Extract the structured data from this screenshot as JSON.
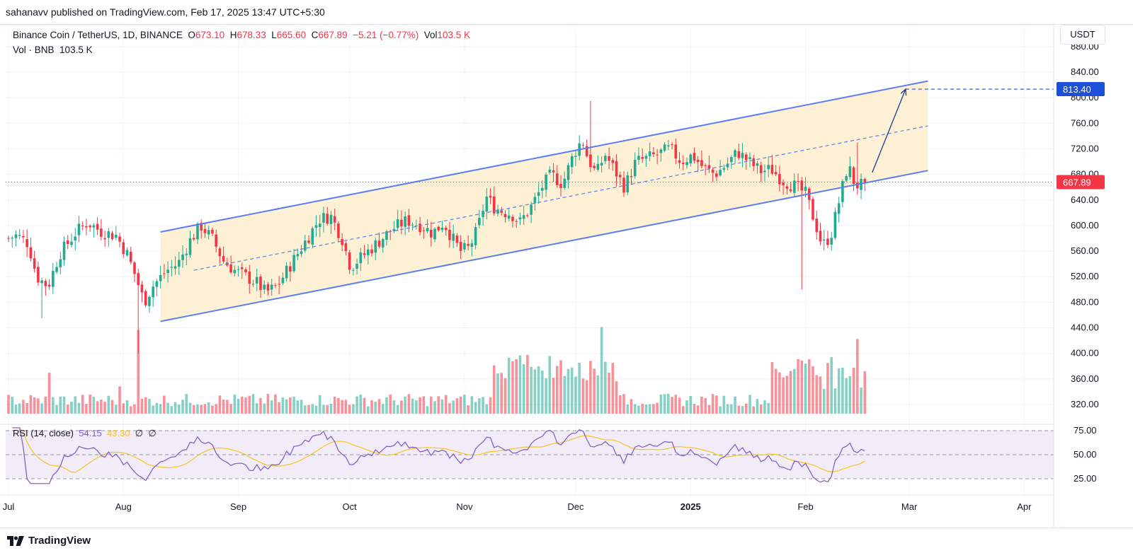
{
  "header": {
    "published": "sahanavv published on TradingView.com, Feb 17, 2025 13:47 UTC+5:30"
  },
  "legend": {
    "symbol": "Binance Coin / TetherUS, 1D, BINANCE",
    "o_label": "O",
    "o_val": "673.10",
    "h_label": "H",
    "h_val": "678.33",
    "l_label": "L",
    "l_val": "665.60",
    "c_label": "C",
    "c_val": "667.89",
    "change": "−5.21 (−0.77%)",
    "vol_label": "Vol",
    "vol_val": "103.5 K",
    "vol_line_label": "Vol · BNB",
    "vol_line_val": "103.5 K"
  },
  "rsi_legend": {
    "name": "RSI (14, close)",
    "rsi": "54.15",
    "ma": "43.30",
    "sym1": "∅",
    "sym2": "∅"
  },
  "currency_button": "USDT",
  "footer": {
    "brand": "TradingView"
  },
  "chart_data": {
    "type": "candlestick",
    "symbol": "Binance Coin / TetherUS",
    "timeframe": "1D",
    "exchange": "BINANCE",
    "ylim": [
      305,
      880
    ],
    "y_ticks": [
      "880.00",
      "840.00",
      "800.00",
      "760.00",
      "720.00",
      "680.00",
      "640.00",
      "600.00",
      "560.00",
      "520.00",
      "480.00",
      "440.00",
      "400.00",
      "360.00",
      "320.00"
    ],
    "y_tick_values": [
      880,
      840,
      800,
      760,
      720,
      680,
      640,
      600,
      560,
      520,
      480,
      440,
      400,
      360,
      320
    ],
    "x_labels": [
      "Jul",
      "Aug",
      "Sep",
      "Oct",
      "Nov",
      "Dec",
      "2025",
      "Feb",
      "Mar",
      "Apr"
    ],
    "last_price": "667.89",
    "target_price": "813.40",
    "channel": {
      "upper": [
        [
          "Aug 11",
          590
        ],
        [
          "Mar 6",
          826
        ]
      ],
      "mid": [
        [
          "Aug 20",
          530
        ],
        [
          "Mar 6",
          756
        ]
      ],
      "lower": [
        [
          "Aug 11",
          450
        ],
        [
          "Mar 6",
          686
        ]
      ]
    },
    "target_arrow": [
      [
        "Feb 19",
        683
      ],
      [
        "Feb 28",
        813.4
      ]
    ],
    "rsi_levels": [
      "75.00",
      "50.00",
      "25.00"
    ],
    "rsi_level_values": [
      75,
      50,
      25
    ],
    "rsi_last": 54.15,
    "rsi_ma_last": 43.3,
    "colors": {
      "up": "#22ab94",
      "down": "#f23645",
      "channel": "#5b7fee",
      "fill": "#fdf0d5",
      "rsi": "#7e57c2",
      "rsi_ma": "#f7c325",
      "rsi_band": "#ede7f6",
      "target_tag": "#1e4fd8"
    }
  }
}
